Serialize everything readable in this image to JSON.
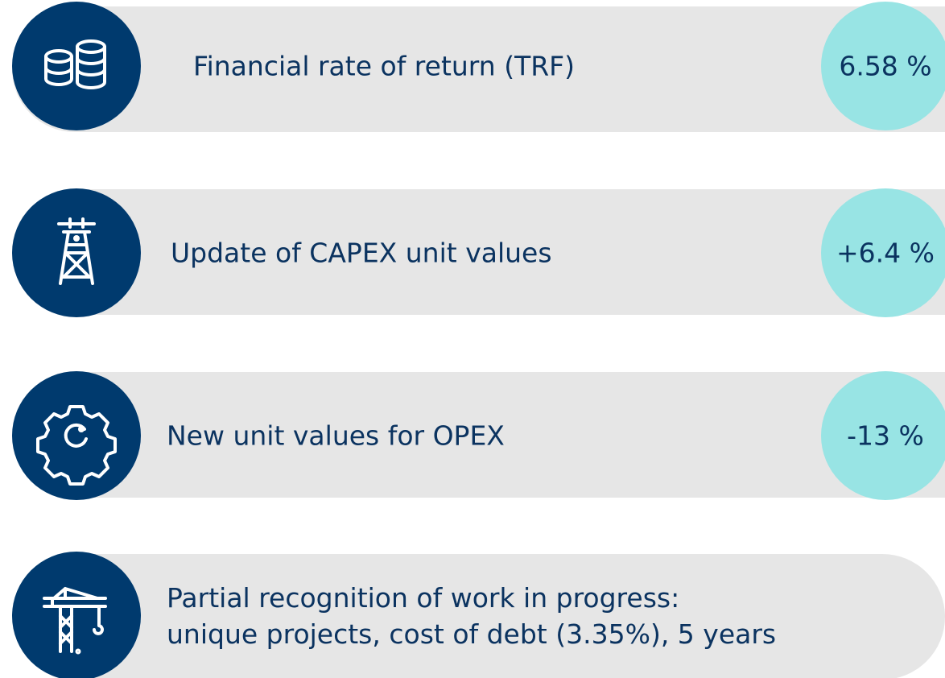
{
  "items": [
    {
      "label": [
        "Financial rate of return (TRF)"
      ],
      "value": "6.58 %"
    },
    {
      "label": [
        "Update of CAPEX unit values"
      ],
      "value": "+6.4 %"
    },
    {
      "label": [
        "New unit values for OPEX"
      ],
      "value": "-13 %"
    },
    {
      "label": [
        "Partial recognition of work in progress:",
        "unique projects, cost of debt (3.35%), 5 years"
      ]
    }
  ]
}
